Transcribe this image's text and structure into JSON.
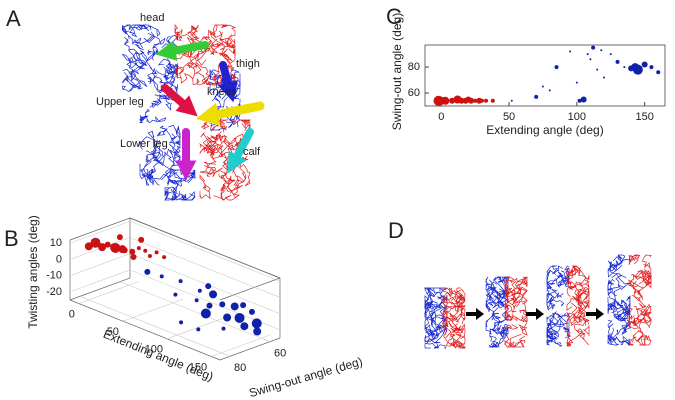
{
  "figure": {
    "panel_labels": [
      "A",
      "B",
      "C",
      "D"
    ],
    "annotations": [
      "head",
      "thigh",
      "knees",
      "Upper leg",
      "Lower leg",
      "calf"
    ]
  },
  "chart_data": [
    {
      "type": "scatter3d",
      "xlabel": "Extending angle (deg)",
      "ylabel": "Swing-out angle (deg)",
      "zlabel": "Twisting angles (deg)",
      "xlim": [
        -10,
        160
      ],
      "ylim": [
        55,
        85
      ],
      "zlim": [
        -25,
        12
      ],
      "xticks": [
        0,
        50,
        100,
        150
      ],
      "yticks": [
        60,
        80
      ],
      "zticks": [
        10,
        0,
        -10,
        -20
      ],
      "series": [
        {
          "color": "#cc1111",
          "x": [
            0,
            3,
            6,
            10,
            12,
            15,
            18,
            20,
            22,
            25,
            28,
            30,
            33,
            36,
            40,
            8,
            14
          ],
          "y": [
            80,
            78,
            76,
            75,
            72,
            74,
            70,
            72,
            68,
            66,
            70,
            65,
            64,
            62,
            60,
            68,
            60
          ],
          "z": [
            8,
            10,
            7,
            9,
            6,
            8,
            5,
            7,
            4,
            6,
            3,
            5,
            2,
            4,
            1,
            10,
            6
          ],
          "sizes": [
            4,
            5,
            4,
            3,
            5,
            4,
            3,
            4,
            3,
            2,
            3,
            2,
            2,
            2,
            2,
            3,
            3
          ]
        },
        {
          "color": "#1122aa",
          "x": [
            55,
            60,
            70,
            80,
            90,
            95,
            100,
            105,
            110,
            115,
            120,
            125,
            130,
            135,
            140,
            145,
            150,
            100,
            115,
            130,
            85,
            125
          ],
          "y": [
            75,
            70,
            65,
            72,
            60,
            68,
            62,
            66,
            70,
            64,
            60,
            66,
            62,
            58,
            64,
            60,
            62,
            78,
            76,
            70,
            62,
            58
          ],
          "z": [
            2,
            -2,
            -5,
            -8,
            -6,
            -10,
            -8,
            -12,
            -14,
            -10,
            -12,
            -15,
            -16,
            -13,
            -18,
            -17,
            -20,
            -18,
            -20,
            -19,
            -9,
            -11
          ],
          "sizes": [
            3,
            2,
            2,
            2,
            3,
            2,
            4,
            3,
            5,
            3,
            4,
            4,
            5,
            3,
            4,
            5,
            4,
            2,
            2,
            2,
            2,
            3
          ]
        }
      ]
    },
    {
      "type": "scatter",
      "xlabel": "Extending angle (deg)",
      "ylabel": "Swing-out angle (deg)",
      "xlim": [
        -12,
        165
      ],
      "ylim": [
        50,
        97
      ],
      "xticks": [
        0,
        50,
        100,
        150
      ],
      "yticks": [
        60,
        80
      ],
      "series": [
        {
          "color": "#cc1111",
          "x": [
            -2,
            0,
            3,
            8,
            12,
            15,
            18,
            20,
            22,
            25,
            28,
            30,
            33,
            38
          ],
          "values": [
            54,
            54,
            54,
            54,
            55,
            54,
            54,
            55,
            54,
            54,
            54,
            54,
            54,
            54
          ],
          "sizes": [
            5,
            4,
            4,
            3,
            4,
            3,
            3,
            3,
            3,
            2,
            3,
            2,
            2,
            2
          ]
        },
        {
          "color": "#1122aa",
          "x": [
            52,
            70,
            75,
            80,
            85,
            95,
            100,
            102,
            105,
            108,
            110,
            112,
            115,
            118,
            120,
            125,
            130,
            135,
            140,
            143,
            145,
            150,
            155,
            160
          ],
          "values": [
            54,
            57,
            65,
            62,
            80,
            92,
            68,
            54,
            55,
            90,
            86,
            95,
            78,
            93,
            72,
            90,
            84,
            80,
            79,
            80,
            78,
            82,
            80,
            76
          ],
          "sizes": [
            1,
            2,
            1,
            1,
            2,
            1,
            1,
            2,
            3,
            1,
            1,
            2,
            1,
            1,
            1,
            1,
            2,
            1,
            3,
            4,
            5,
            3,
            2,
            2
          ]
        }
      ]
    }
  ]
}
